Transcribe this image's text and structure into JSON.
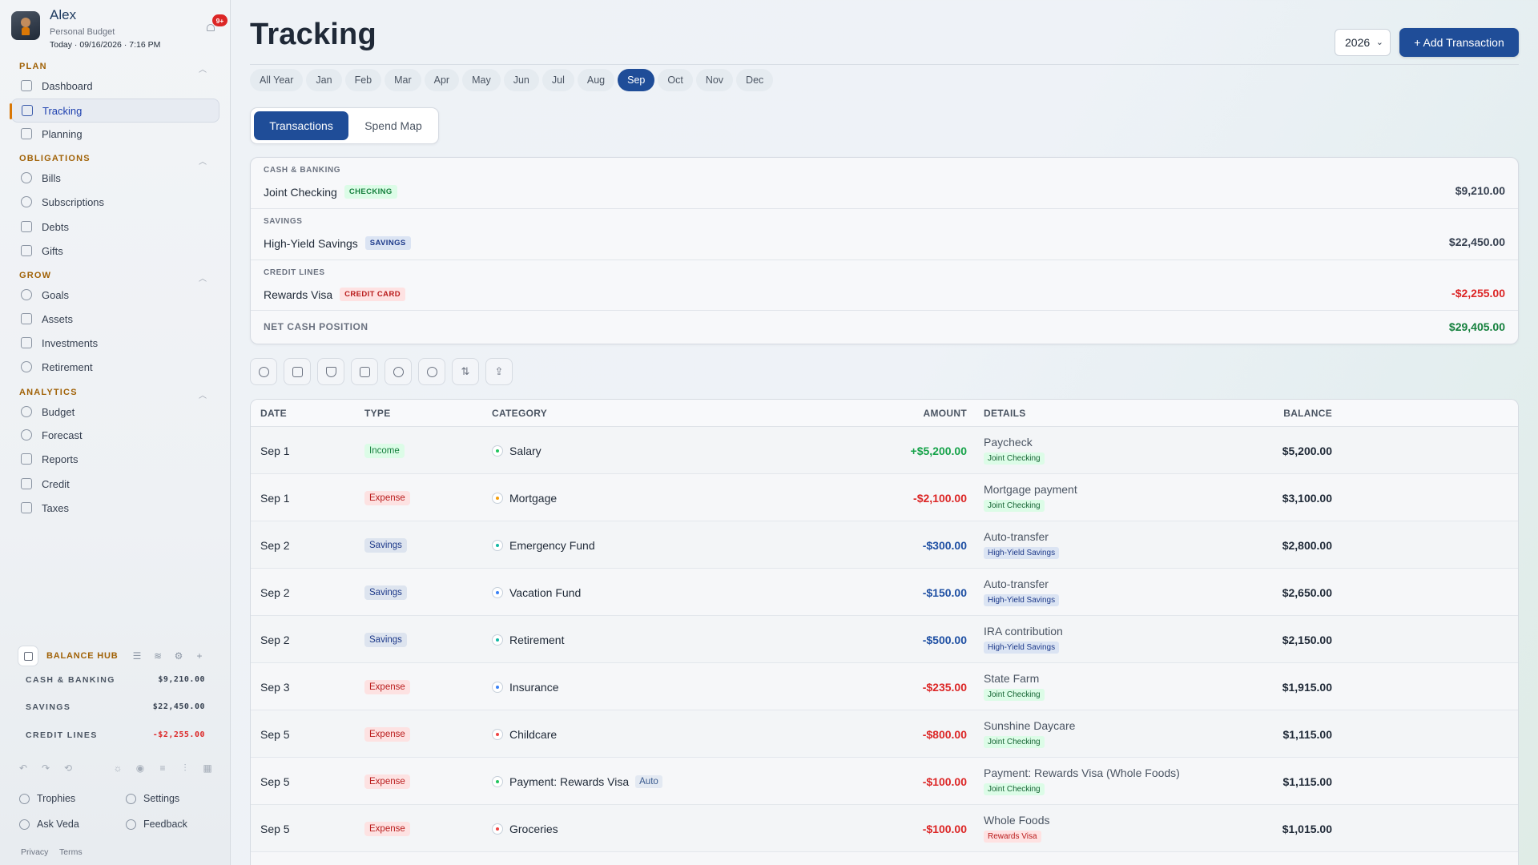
{
  "profile": {
    "name": "Alex",
    "subtitle": "Personal Budget",
    "date": "Today · 09/16/2026 · 7:16 PM",
    "notifications": "9+"
  },
  "sidebar": {
    "sections": [
      {
        "title": "PLAN",
        "items": [
          "Dashboard",
          "Tracking",
          "Planning"
        ]
      },
      {
        "title": "OBLIGATIONS",
        "items": [
          "Bills",
          "Subscriptions",
          "Debts",
          "Gifts"
        ]
      },
      {
        "title": "GROW",
        "items": [
          "Goals",
          "Assets",
          "Investments",
          "Retirement"
        ]
      },
      {
        "title": "ANALYTICS",
        "items": [
          "Budget",
          "Forecast",
          "Reports",
          "Credit",
          "Taxes"
        ]
      }
    ],
    "active_item": "Tracking",
    "balance_hub": {
      "title": "BALANCE HUB",
      "rows": [
        {
          "label": "CASH & BANKING",
          "value": "$9,210.00"
        },
        {
          "label": "SAVINGS",
          "value": "$22,450.00"
        },
        {
          "label": "CREDIT LINES",
          "value": "-$2,255.00"
        }
      ]
    },
    "footer_links": [
      "Trophies",
      "Settings",
      "Ask Veda",
      "Feedback"
    ],
    "legal": [
      "Privacy",
      "Terms"
    ]
  },
  "header": {
    "title": "Tracking",
    "year": "2026",
    "add_button": "+ Add Transaction"
  },
  "months": [
    "All Year",
    "Jan",
    "Feb",
    "Mar",
    "Apr",
    "May",
    "Jun",
    "Jul",
    "Aug",
    "Sep",
    "Oct",
    "Nov",
    "Dec"
  ],
  "active_month": "Sep",
  "tabs": [
    "Transactions",
    "Spend Map"
  ],
  "accounts": [
    {
      "group": "CASH & BANKING",
      "name": "Joint Checking",
      "tag": "CHECKING",
      "amount": "$9,210.00"
    },
    {
      "group": "SAVINGS",
      "name": "High-Yield Savings",
      "tag": "SAVINGS",
      "amount": "$22,450.00"
    },
    {
      "group": "CREDIT LINES",
      "name": "Rewards Visa",
      "tag": "CREDIT CARD",
      "amount": "-$2,255.00"
    }
  ],
  "net_cash": {
    "label": "NET CASH POSITION",
    "amount": "$29,405.00"
  },
  "toolbar_icons": [
    "search-icon",
    "check-square-icon",
    "filter-icon",
    "calendar-icon",
    "people-icon",
    "comment-icon",
    "sort-icon",
    "export-icon"
  ],
  "table": {
    "columns": [
      "DATE",
      "TYPE",
      "CATEGORY",
      "AMOUNT",
      "DETAILS",
      "BALANCE"
    ],
    "rows": [
      {
        "date": "Sep 1",
        "type": "Income",
        "category": "Salary",
        "amount": "+$5,200.00",
        "detail": "Paycheck",
        "account": "Joint Checking",
        "balance": "$5,200.00"
      },
      {
        "date": "Sep 1",
        "type": "Expense",
        "category": "Mortgage",
        "amount": "-$2,100.00",
        "detail": "Mortgage payment",
        "account": "Joint Checking",
        "balance": "$3,100.00"
      },
      {
        "date": "Sep 2",
        "type": "Savings",
        "category": "Emergency Fund",
        "amount": "-$300.00",
        "detail": "Auto-transfer",
        "account": "High-Yield Savings",
        "balance": "$2,800.00"
      },
      {
        "date": "Sep 2",
        "type": "Savings",
        "category": "Vacation Fund",
        "amount": "-$150.00",
        "detail": "Auto-transfer",
        "account": "High-Yield Savings",
        "balance": "$2,650.00"
      },
      {
        "date": "Sep 2",
        "type": "Savings",
        "category": "Retirement",
        "amount": "-$500.00",
        "detail": "IRA contribution",
        "account": "High-Yield Savings",
        "balance": "$2,150.00"
      },
      {
        "date": "Sep 3",
        "type": "Expense",
        "category": "Insurance",
        "amount": "-$235.00",
        "detail": "State Farm",
        "account": "Joint Checking",
        "balance": "$1,915.00"
      },
      {
        "date": "Sep 5",
        "type": "Expense",
        "category": "Childcare",
        "amount": "-$800.00",
        "detail": "Sunshine Daycare",
        "account": "Joint Checking",
        "balance": "$1,115.00"
      },
      {
        "date": "Sep 5",
        "type": "Expense",
        "category": "Payment: Rewards Visa",
        "badge": "Auto",
        "amount": "-$100.00",
        "detail": "Payment: Rewards Visa (Whole Foods)",
        "account": "Joint Checking",
        "balance": "$1,115.00"
      },
      {
        "date": "Sep 5",
        "type": "Expense",
        "category": "Groceries",
        "amount": "-$100.00",
        "detail": "Whole Foods",
        "account": "Rewards Visa",
        "balance": "$1,015.00"
      }
    ]
  }
}
